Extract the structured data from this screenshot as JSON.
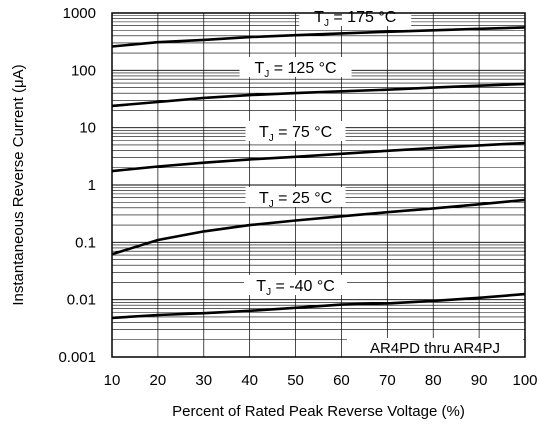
{
  "chart_data": {
    "type": "line",
    "x_scale": "linear",
    "y_scale": "log",
    "xlim": [
      10,
      100
    ],
    "ylim": [
      0.001,
      1000
    ],
    "xlabel": "Percent of Rated Peak Reverse Voltage (%)",
    "ylabel": "Instantaneous Reverse Current (μA)",
    "x_ticks": [
      "10",
      "20",
      "30",
      "40",
      "50",
      "60",
      "70",
      "80",
      "90",
      "100"
    ],
    "y_ticks": [
      "0.001",
      "0.01",
      "0.1",
      "1",
      "10",
      "100",
      "1000"
    ],
    "grid": true,
    "annotation": "AR4PD thru AR4PJ",
    "series": [
      {
        "name": "TJ = 175 °C",
        "label_main": "T",
        "label_sub": "J",
        "label_rest": "= 175 °C",
        "x": [
          10,
          20,
          30,
          40,
          50,
          60,
          70,
          80,
          90,
          100
        ],
        "y": [
          260,
          310,
          340,
          380,
          410,
          440,
          470,
          500,
          530,
          560
        ]
      },
      {
        "name": "TJ = 125 °C",
        "label_main": "T",
        "label_sub": "J",
        "label_rest": "= 125 °C",
        "x": [
          10,
          20,
          30,
          40,
          50,
          60,
          70,
          80,
          90,
          100
        ],
        "y": [
          24,
          28,
          33,
          37,
          40,
          43,
          46,
          50,
          54,
          58
        ]
      },
      {
        "name": "TJ = 75 °C",
        "label_main": "T",
        "label_sub": "J",
        "label_rest": "= 75 °C",
        "x": [
          10,
          20,
          30,
          40,
          50,
          60,
          70,
          80,
          90,
          100
        ],
        "y": [
          1.75,
          2.1,
          2.45,
          2.8,
          3.1,
          3.5,
          3.95,
          4.4,
          4.9,
          5.4
        ]
      },
      {
        "name": "TJ = 25 °C",
        "label_main": "T",
        "label_sub": "J",
        "label_rest": "= 25 °C",
        "x": [
          10,
          20,
          30,
          40,
          50,
          60,
          70,
          80,
          90,
          100
        ],
        "y": [
          0.062,
          0.11,
          0.155,
          0.2,
          0.24,
          0.285,
          0.335,
          0.39,
          0.46,
          0.55
        ]
      },
      {
        "name": "TJ = -40 °C",
        "label_main": "T",
        "label_sub": "J",
        "label_rest": "= -40 °C",
        "x": [
          10,
          20,
          30,
          40,
          50,
          60,
          70,
          80,
          90,
          100
        ],
        "y": [
          0.0048,
          0.0054,
          0.0058,
          0.0064,
          0.0072,
          0.0082,
          0.0086,
          0.0095,
          0.0108,
          0.0125
        ]
      }
    ]
  }
}
